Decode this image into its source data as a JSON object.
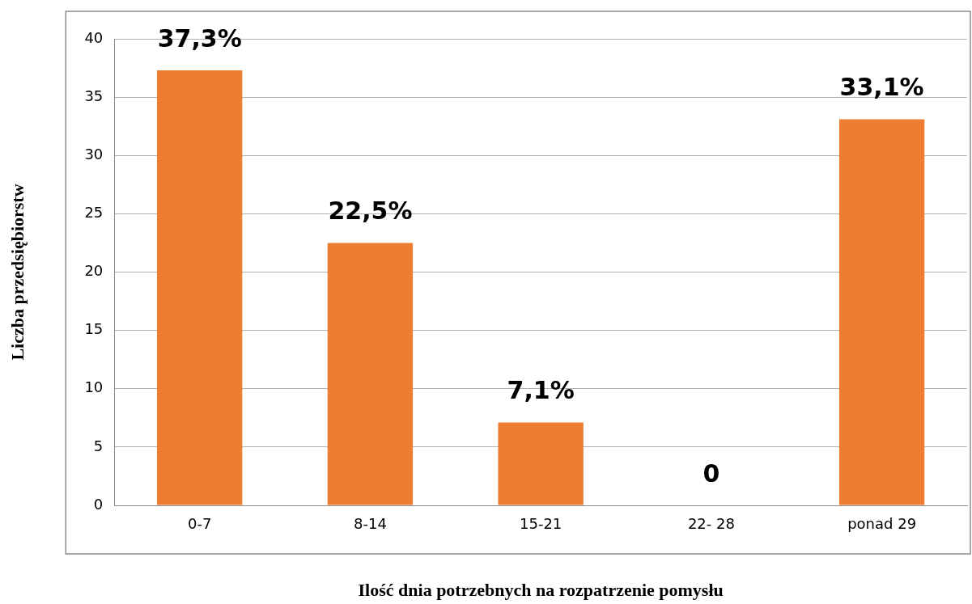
{
  "chart_data": {
    "type": "bar",
    "xlabel": "Ilość dnia potrzebnych na rozpatrzenie pomysłu",
    "ylabel": "Liczba przedsiębiorstw",
    "categories": [
      "0-7",
      "8-14",
      "15-21",
      "22- 28",
      "ponad 29"
    ],
    "values": [
      37.3,
      22.5,
      7.1,
      0,
      33.1
    ],
    "value_labels": [
      "37,3%",
      "22,5%",
      "7,1%",
      "0",
      "33,1%"
    ],
    "color": "#ed7d31",
    "ylim": [
      0,
      40
    ],
    "yticks": [
      0,
      5,
      10,
      15,
      20,
      25,
      30,
      35,
      40
    ],
    "grid": "y",
    "legend": false
  }
}
